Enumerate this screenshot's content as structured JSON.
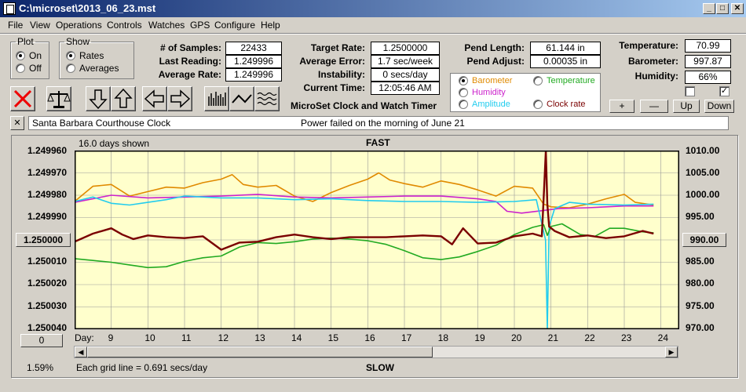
{
  "window": {
    "title": "C:\\microset\\2013_06_23.mst",
    "min_glyph": "_",
    "max_glyph": "□",
    "close_glyph": "✕"
  },
  "menu": [
    "File",
    "View",
    "Operations",
    "Controls",
    "Watches",
    "GPS",
    "Configure",
    "Help"
  ],
  "plot_group": {
    "title": "Plot",
    "options": [
      "On",
      "Off"
    ],
    "selected": "On"
  },
  "show_group": {
    "title": "Show",
    "options": [
      "Rates",
      "Averages"
    ],
    "selected": "Rates"
  },
  "stats": {
    "samples_label": "# of Samples:",
    "samples": "22433",
    "last_reading_label": "Last Reading:",
    "last_reading": "1.249996",
    "average_rate_label": "Average Rate:",
    "average_rate": "1.249996",
    "target_rate_label": "Target Rate:",
    "target_rate": "1.2500000",
    "average_error_label": "Average Error:",
    "average_error": "1.7 sec/week",
    "instability_label": "Instability:",
    "instability": "0 secs/day",
    "current_time_label": "Current Time:",
    "current_time": "12:05:46 AM",
    "pend_length_label": "Pend Length:",
    "pend_length": "61.144 in",
    "pend_adjust_label": "Pend Adjust:",
    "pend_adjust": "0.00035 in"
  },
  "app_name": "MicroSet Clock and Watch Timer",
  "environment": {
    "temperature_label": "Temperature:",
    "temperature": "70.99",
    "barometer_label": "Barometer:",
    "barometer": "997.87",
    "humidity_label": "Humidity:",
    "humidity": "66%"
  },
  "sensor_options": [
    {
      "label": "Barometer",
      "color": "#e08a00",
      "selected": true
    },
    {
      "label": "Temperature",
      "color": "#22aa22",
      "selected": false
    },
    {
      "label": "Humidity",
      "color": "#cc22cc",
      "selected": false
    },
    {
      "label": "Clock rate",
      "color": "#7a0000",
      "selected": false
    },
    {
      "label": "Amplitude",
      "color": "#22ccee",
      "selected": false
    }
  ],
  "scale_buttons": {
    "plus": "+",
    "minus": "—",
    "up": "Up",
    "down": "Down"
  },
  "note": {
    "close": "✕",
    "clock_name": "Santa Barbara Courthouse Clock",
    "message": "Power failed on the morning of June 21"
  },
  "chart_data": {
    "type": "line",
    "days_shown": "16.0 days shown",
    "top_label": "FAST",
    "bottom_label": "SLOW",
    "grid_note": "Each grid line = 0.691 secs/day",
    "percent": "1.59%",
    "center_button": "1.250000",
    "right_button": "990.00",
    "offset_button": "0",
    "x_axis_label": "Day:",
    "x_ticks": [
      "9",
      "10",
      "11",
      "12",
      "13",
      "14",
      "15",
      "16",
      "17",
      "18",
      "19",
      "20",
      "21",
      "22",
      "23",
      "24"
    ],
    "x_tick_days": [
      9,
      10,
      11,
      12,
      13,
      14,
      15,
      16,
      17,
      18,
      19,
      20,
      21,
      22,
      23,
      24
    ],
    "xlim": [
      8.0,
      24.5
    ],
    "y_left_ticks": [
      "1.249960",
      "1.249970",
      "1.249980",
      "1.249990",
      "1.250000",
      "1.250010",
      "1.250020",
      "1.250030",
      "1.250040"
    ],
    "y_left_inverted": true,
    "ylim_left": [
      1.24996,
      1.25004
    ],
    "y_right_ticks": [
      "1010.00",
      "1005.00",
      "1000.00",
      "995.00",
      "990.00",
      "985.00",
      "980.00",
      "975.00",
      "970.00"
    ],
    "ylim_right": [
      970,
      1010
    ],
    "grid": true,
    "background": "#ffffcc",
    "series": [
      {
        "color": "#e08a00",
        "x": [
          8.0,
          8.5,
          9.0,
          9.5,
          10.0,
          10.5,
          11.0,
          11.5,
          12.0,
          12.3,
          12.6,
          13.0,
          13.5,
          14.0,
          14.5,
          15.0,
          15.5,
          16.0,
          16.3,
          16.6,
          17.0,
          17.5,
          18.0,
          18.5,
          19.0,
          19.5,
          20.0,
          20.5,
          20.8,
          21.0,
          21.5,
          22.0,
          22.5,
          23.0,
          23.3,
          23.8
        ],
        "values": [
          998.6,
          1002.0,
          1002.4,
          999.8,
          1000.8,
          1001.8,
          1001.6,
          1002.8,
          1003.6,
          1004.6,
          1002.4,
          1001.8,
          1002.2,
          999.8,
          998.6,
          1000.6,
          1002.2,
          1003.6,
          1005.0,
          1003.4,
          1002.6,
          1001.8,
          1003.2,
          1002.4,
          1001.2,
          999.8,
          1002.0,
          1001.6,
          998.0,
          997.4,
          997.2,
          998.0,
          999.2,
          1000.2,
          998.4,
          997.8
        ]
      },
      {
        "color": "#cc22cc",
        "x": [
          8.0,
          9.0,
          10.0,
          11.0,
          12.0,
          13.0,
          14.0,
          15.0,
          16.0,
          17.0,
          18.0,
          19.0,
          19.5,
          19.8,
          20.2,
          20.8,
          21.2,
          22.0,
          23.0,
          23.8
        ],
        "values": [
          998.4,
          1000.0,
          999.4,
          999.6,
          999.8,
          1000.2,
          999.6,
          999.4,
          999.6,
          999.8,
          999.8,
          999.2,
          998.6,
          996.4,
          996.0,
          996.6,
          997.0,
          997.2,
          997.6,
          997.6
        ]
      },
      {
        "color": "#22ccee",
        "x": [
          8.0,
          8.5,
          9.0,
          9.5,
          10.0,
          10.5,
          11.0,
          12.0,
          13.0,
          14.0,
          15.0,
          16.0,
          17.0,
          18.0,
          19.0,
          20.0,
          20.6,
          20.85,
          20.9,
          20.95,
          21.1,
          21.5,
          22.0,
          23.0,
          23.8
        ],
        "values": [
          998.6,
          999.6,
          998.2,
          997.8,
          998.4,
          999.0,
          999.8,
          999.4,
          999.4,
          999.0,
          999.2,
          998.8,
          998.6,
          998.6,
          998.4,
          998.6,
          999.0,
          990.0,
          970.0,
          993.0,
          997.0,
          998.4,
          998.0,
          997.8,
          998.0
        ]
      },
      {
        "color": "#22aa22",
        "x": [
          8.0,
          8.5,
          9.0,
          9.5,
          10.0,
          10.5,
          11.0,
          11.5,
          12.0,
          12.5,
          13.0,
          13.5,
          14.0,
          14.5,
          15.0,
          15.5,
          16.0,
          16.5,
          17.0,
          17.5,
          18.0,
          18.5,
          19.0,
          19.5,
          20.0,
          20.5,
          20.8,
          20.9,
          21.0,
          21.3,
          21.8,
          22.2,
          22.6,
          23.0,
          23.5,
          23.8
        ],
        "values": [
          985.8,
          985.4,
          985.0,
          984.4,
          983.8,
          984.0,
          985.2,
          986.0,
          986.4,
          988.4,
          989.4,
          989.2,
          989.6,
          990.2,
          990.4,
          990.2,
          989.8,
          989.0,
          987.6,
          986.0,
          985.6,
          986.2,
          987.4,
          988.8,
          991.2,
          992.8,
          993.4,
          991.0,
          993.0,
          993.6,
          991.2,
          990.8,
          992.6,
          992.6,
          991.8,
          991.6
        ]
      },
      {
        "color": "#7a0000",
        "x": [
          8.0,
          8.5,
          9.0,
          9.3,
          9.6,
          10.0,
          10.5,
          11.0,
          11.5,
          12.0,
          12.5,
          13.0,
          13.5,
          14.0,
          14.5,
          15.0,
          15.5,
          16.0,
          16.5,
          17.0,
          17.5,
          18.0,
          18.3,
          18.6,
          19.0,
          19.5,
          20.0,
          20.5,
          20.75,
          20.82,
          20.86,
          20.9,
          20.95,
          21.1,
          21.5,
          22.0,
          22.5,
          23.0,
          23.5,
          23.8
        ],
        "values": [
          989.6,
          991.4,
          992.6,
          991.2,
          990.2,
          991.0,
          990.6,
          990.4,
          990.8,
          987.8,
          989.4,
          989.6,
          990.6,
          991.2,
          990.6,
          990.2,
          990.6,
          990.6,
          990.6,
          990.8,
          991.0,
          990.8,
          989.0,
          992.6,
          989.2,
          989.4,
          990.8,
          991.4,
          990.8,
          1003.0,
          1010.0,
          998.0,
          993.0,
          992.0,
          990.6,
          991.0,
          990.4,
          990.8,
          992.0,
          991.4
        ]
      }
    ]
  }
}
